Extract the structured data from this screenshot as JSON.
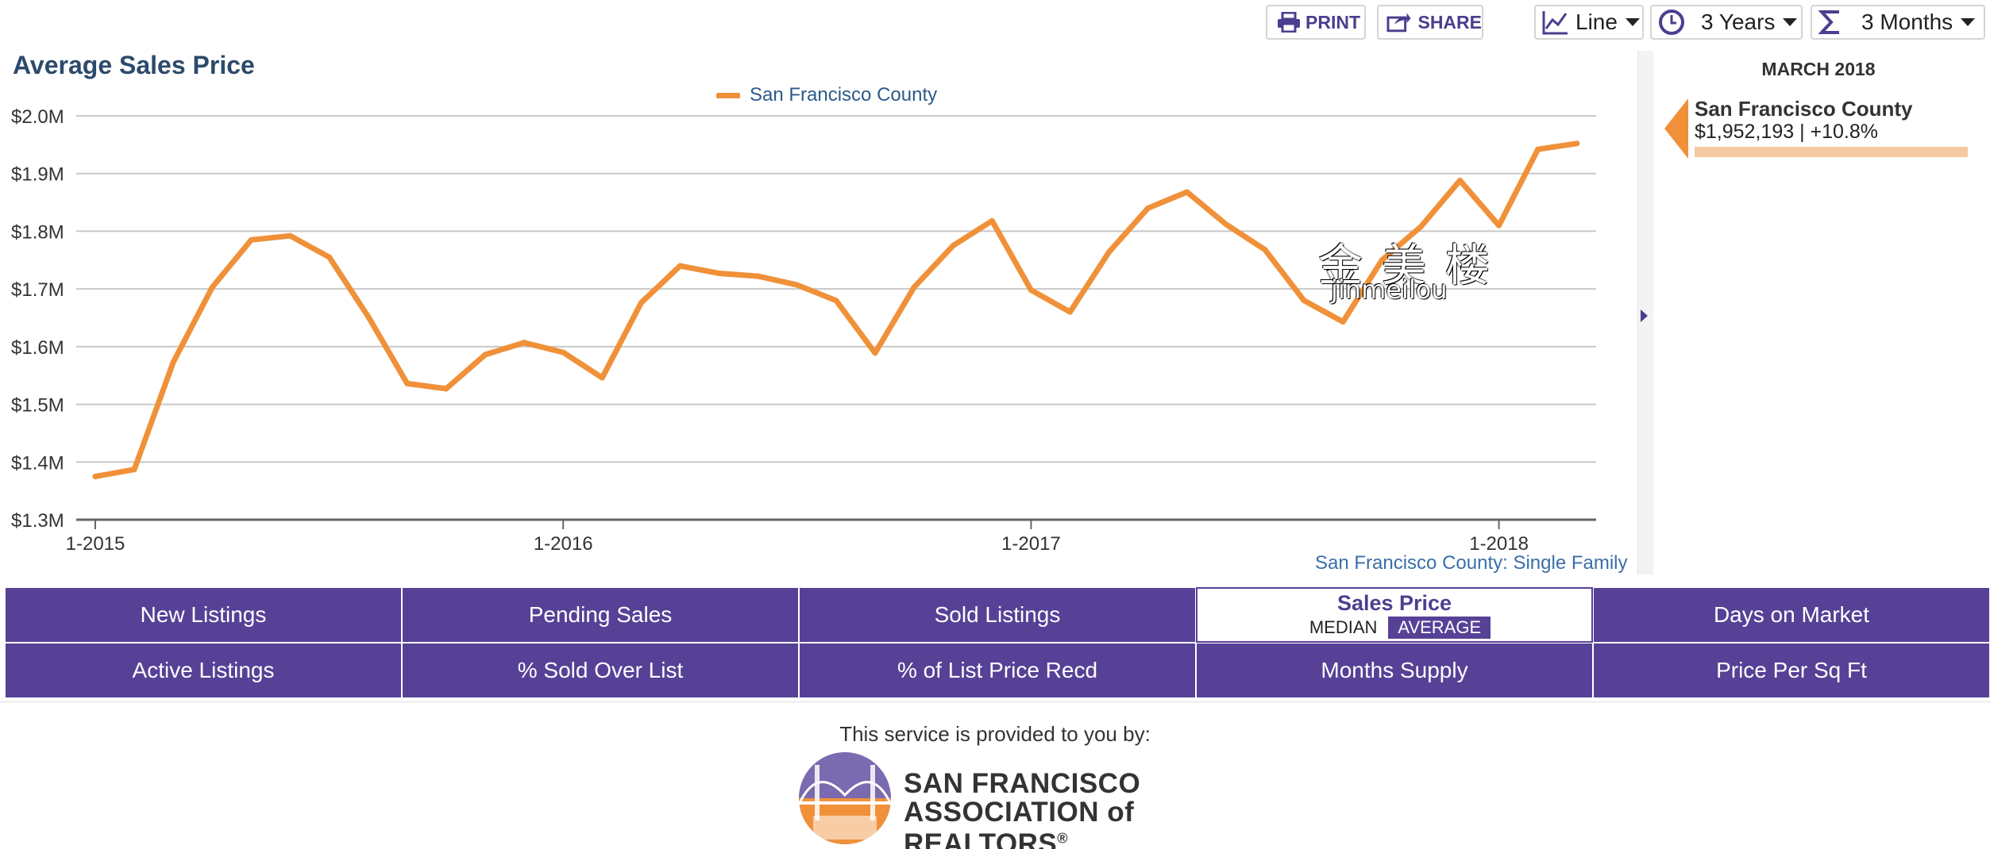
{
  "toolbar": {
    "print_label": "PRINT",
    "share_label": "SHARE",
    "chart_type": "Line",
    "range": "3 Years",
    "aggregation": "3 Months"
  },
  "chart_title": "Average Sales Price",
  "caption": "San Francisco County: Single Family",
  "right_panel": {
    "date": "MARCH 2018",
    "name": "San Francisco County",
    "value": "$1,952,193 | +10.8%"
  },
  "metrics": {
    "row1": [
      "New Listings",
      "Pending Sales",
      "Sold Listings",
      "Sales Price",
      "Days on Market"
    ],
    "row2": [
      "Active Listings",
      "% Sold Over List",
      "% of List Price Recd",
      "Months Supply",
      "Price Per Sq Ft"
    ],
    "sales_price_options": [
      "MEDIAN",
      "AVERAGE"
    ],
    "active_option": "AVERAGE"
  },
  "footer": {
    "provided_text": "This service is provided to you by:",
    "logo_line1": "SAN FRANCISCO",
    "logo_line2": "ASSOCIATION of REALTORS",
    "logo_mark": "®"
  },
  "watermark": {
    "cn": "金美楼",
    "en": "jinmeilou"
  },
  "colors": {
    "accent": "#f0913a",
    "purple": "#564196",
    "title": "#2c4a6b"
  },
  "chart_data": {
    "type": "line",
    "title": "Average Sales Price",
    "xlabel": "",
    "ylabel": "",
    "x": [
      "2015-01",
      "2015-02",
      "2015-03",
      "2015-04",
      "2015-05",
      "2015-06",
      "2015-07",
      "2015-08",
      "2015-09",
      "2015-10",
      "2015-11",
      "2015-12",
      "2016-01",
      "2016-02",
      "2016-03",
      "2016-04",
      "2016-05",
      "2016-06",
      "2016-07",
      "2016-08",
      "2016-09",
      "2016-10",
      "2016-11",
      "2016-12",
      "2017-01",
      "2017-02",
      "2017-03",
      "2017-04",
      "2017-05",
      "2017-06",
      "2017-07",
      "2017-08",
      "2017-09",
      "2017-10",
      "2017-11",
      "2017-12",
      "2018-01",
      "2018-02",
      "2018-03"
    ],
    "x_ticks": [
      "1-2015",
      "1-2016",
      "1-2017",
      "1-2018"
    ],
    "y_ticks": [
      "$1.3M",
      "$1.4M",
      "$1.5M",
      "$1.6M",
      "$1.7M",
      "$1.8M",
      "$1.9M",
      "$2.0M"
    ],
    "ylim": [
      1300000,
      2000000
    ],
    "grid": true,
    "legend": "top-center",
    "series": [
      {
        "name": "San Francisco County",
        "color": "#f0913a",
        "values": [
          1375000,
          1387000,
          1573000,
          1703000,
          1785000,
          1792000,
          1755000,
          1652000,
          1536000,
          1527000,
          1586000,
          1607000,
          1590000,
          1546000,
          1676000,
          1740000,
          1727000,
          1722000,
          1707000,
          1680000,
          1589000,
          1703000,
          1775000,
          1818000,
          1698000,
          1660000,
          1764000,
          1840000,
          1868000,
          1812000,
          1768000,
          1680000,
          1643000,
          1750000,
          1808000,
          1888000,
          1810000,
          1942000,
          1952193
        ]
      }
    ]
  }
}
